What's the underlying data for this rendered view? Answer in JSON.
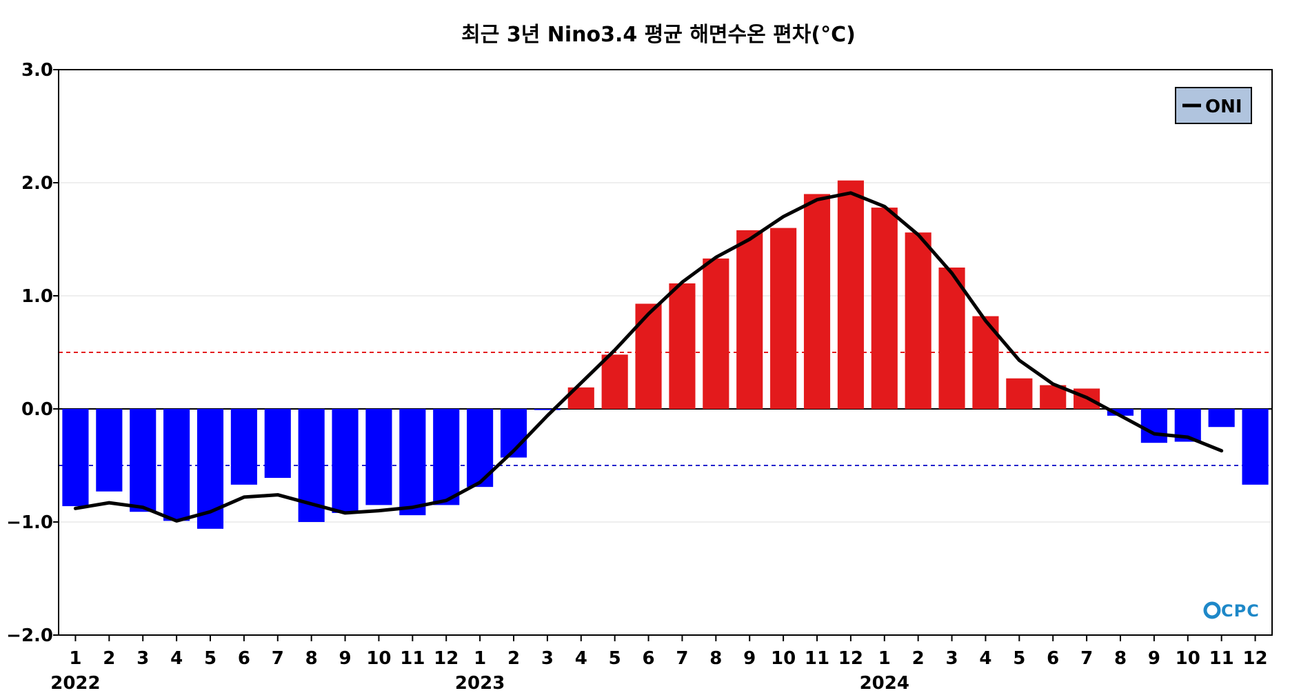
{
  "chart_data": {
    "type": "bar",
    "title": "최근 3년 Nino3.4 평균 해면수온 편차(°C)",
    "xlabel": "",
    "ylabel": "",
    "ylim": [
      -2.0,
      3.0
    ],
    "yticks": [
      -2.0,
      -1.0,
      0.0,
      1.0,
      2.0,
      3.0
    ],
    "ytick_labels": [
      "−2.0",
      "−1.0",
      "0.0",
      "1.0",
      "2.0",
      "3.0"
    ],
    "categories": [
      "1",
      "2",
      "3",
      "4",
      "5",
      "6",
      "7",
      "8",
      "9",
      "10",
      "11",
      "12",
      "1",
      "2",
      "3",
      "4",
      "5",
      "6",
      "7",
      "8",
      "9",
      "10",
      "11",
      "12",
      "1",
      "2",
      "3",
      "4",
      "5",
      "6",
      "7",
      "8",
      "9",
      "10",
      "11",
      "12"
    ],
    "years": [
      {
        "label": "2022",
        "start_index": 0
      },
      {
        "label": "2023",
        "start_index": 12
      },
      {
        "label": "2024",
        "start_index": 24
      }
    ],
    "series": [
      {
        "kind": "bar",
        "values": [
          -0.86,
          -0.73,
          -0.91,
          -0.99,
          -1.06,
          -0.67,
          -0.61,
          -1.0,
          -0.92,
          -0.85,
          -0.94,
          -0.85,
          -0.69,
          -0.43,
          -0.01,
          0.19,
          0.48,
          0.93,
          1.11,
          1.33,
          1.58,
          1.6,
          1.9,
          2.02,
          1.78,
          1.56,
          1.25,
          0.82,
          0.27,
          0.21,
          0.18,
          -0.06,
          -0.3,
          -0.29,
          -0.16,
          -0.67
        ],
        "positive_color": "#e31a1c",
        "negative_color": "#0000ff"
      },
      {
        "name": "ONI",
        "kind": "line",
        "values": [
          -0.88,
          -0.83,
          -0.87,
          -0.99,
          -0.91,
          -0.78,
          -0.76,
          -0.84,
          -0.92,
          -0.9,
          -0.87,
          -0.81,
          -0.65,
          -0.37,
          -0.06,
          0.23,
          0.52,
          0.84,
          1.12,
          1.34,
          1.5,
          1.7,
          1.85,
          1.91,
          1.79,
          1.54,
          1.2,
          0.78,
          0.43,
          0.22,
          0.1,
          -0.06,
          -0.22,
          -0.25,
          -0.37,
          null
        ],
        "color": "#000000"
      }
    ],
    "reference_lines": [
      {
        "value": 0.5,
        "color": "#e31a1c",
        "style": "dashed"
      },
      {
        "value": -0.5,
        "color": "#2222cc",
        "style": "dashed"
      },
      {
        "value": 0.0,
        "color": "#000000",
        "style": "solid"
      }
    ],
    "grid": true,
    "legend": {
      "placement": "top-right",
      "background": "#b0c4de"
    },
    "watermark": "CPC"
  }
}
